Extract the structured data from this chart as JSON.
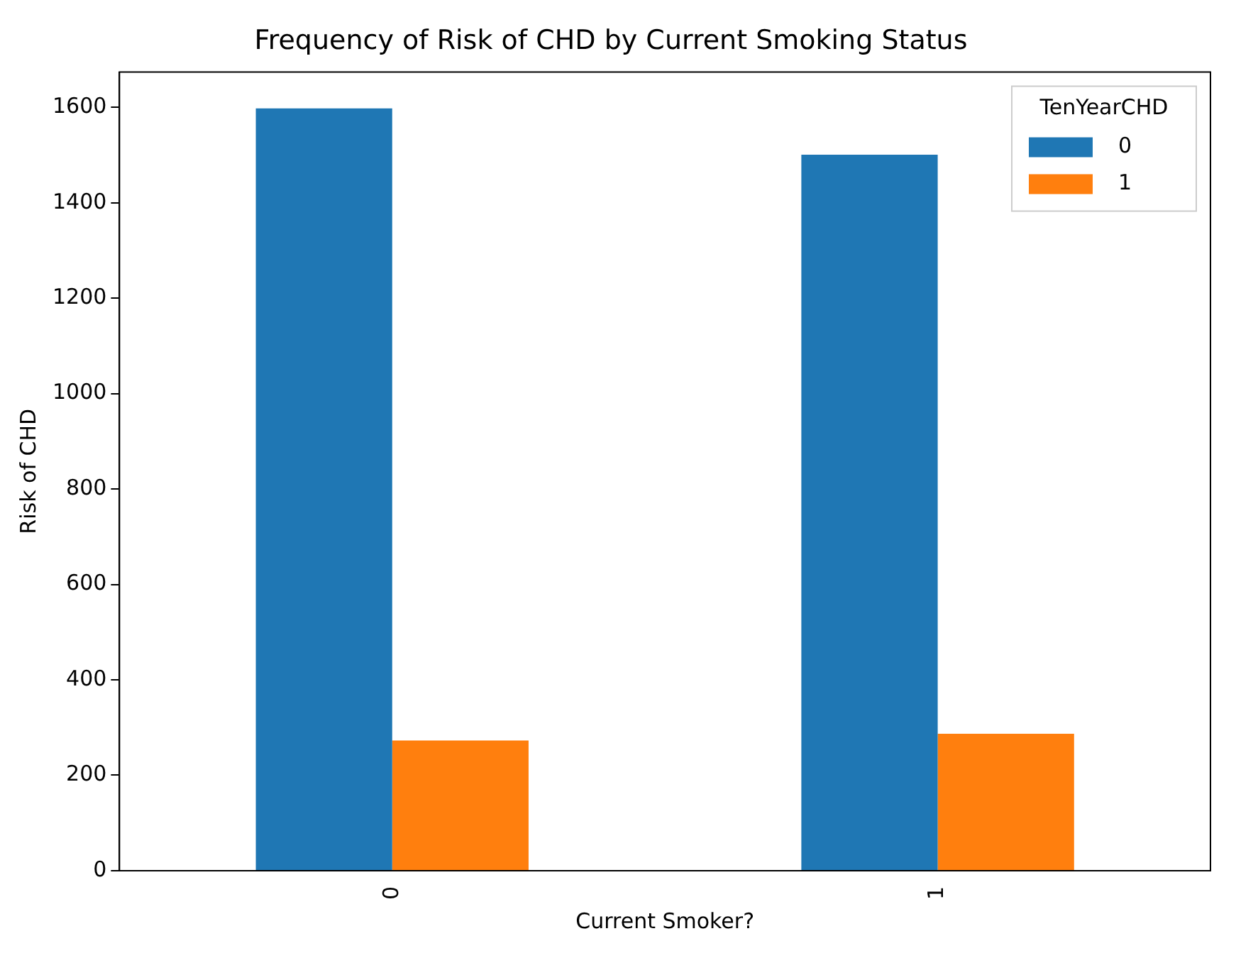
{
  "chart_data": {
    "type": "bar",
    "title": "Frequency of Risk of CHD by Current Smoking Status",
    "xlabel": "Current Smoker?",
    "ylabel": "Risk of CHD",
    "legend_title": "TenYearCHD",
    "categories": [
      "0",
      "1"
    ],
    "series": [
      {
        "name": "0",
        "color": "#1f77b4",
        "values": [
          1598,
          1501
        ]
      },
      {
        "name": "1",
        "color": "#ff7f0e",
        "values": [
          273,
          287
        ]
      }
    ],
    "ylim": [
      0,
      1674
    ],
    "yticks": [
      0,
      200,
      400,
      600,
      800,
      1000,
      1200,
      1400,
      1600
    ],
    "grid": false,
    "legend": "top right"
  }
}
